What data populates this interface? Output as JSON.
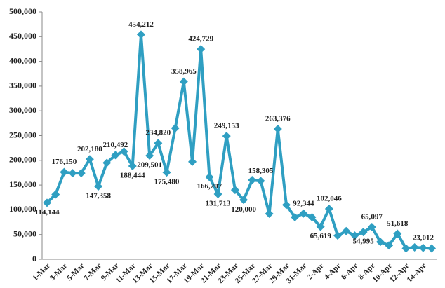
{
  "chart_data": {
    "type": "line",
    "categories": [
      "1-Mar",
      null,
      "3-Mar",
      null,
      "5-Mar",
      null,
      "7-Mar",
      null,
      "9-Mar",
      null,
      "11-Mar",
      null,
      "13-Mar",
      null,
      "15-Mar",
      null,
      "17-Mar",
      null,
      "19-Mar",
      null,
      "21-Mar",
      null,
      "23-Mar",
      null,
      "25-Mar",
      null,
      "27-Mar",
      null,
      "29-Mar",
      null,
      "31-Mar",
      null,
      "2-Apr",
      null,
      "4-Apr",
      null,
      "6-Apr",
      null,
      "8-Apr",
      null,
      "10-Apr",
      null,
      "12-Apr",
      null,
      "14-Apr",
      null
    ],
    "series": [
      {
        "name": null,
        "color": "#2f9fc2",
        "values": [
          114144,
          131000,
          176150,
          174000,
          174000,
          202180,
          147358,
          195000,
          210492,
          218000,
          188444,
          454212,
          209501,
          234820,
          175480,
          265000,
          358965,
          197000,
          424729,
          166207,
          131713,
          249153,
          140000,
          120000,
          160000,
          158305,
          92000,
          263376,
          110000,
          85000,
          92344,
          85000,
          65619,
          102046,
          48000,
          57000,
          48000,
          54995,
          65097,
          35000,
          28000,
          51618,
          22000,
          24000,
          23012,
          22000
        ],
        "value_labels": [
          "114,144",
          null,
          "176,150",
          null,
          null,
          "202,180",
          "147,358",
          null,
          "210,492",
          null,
          "188,444",
          "454,212",
          "209,501",
          "234,820",
          "175,480",
          null,
          "358,965",
          null,
          "424,729",
          "166,207",
          "131,713",
          "249,153",
          null,
          "120,000",
          null,
          "158,305",
          null,
          "263,376",
          null,
          null,
          "92,344",
          null,
          "65,619",
          "102,046",
          null,
          null,
          null,
          "54,995",
          "65,097",
          null,
          null,
          "51,618",
          null,
          null,
          "23,012",
          null
        ]
      }
    ],
    "ylim": [
      0,
      500000
    ],
    "yticks": [
      0,
      {
        "value": 50000,
        "label": "50,000"
      },
      {
        "value": 100000,
        "label": "100,000"
      },
      {
        "value": 150000,
        "label": "150,000"
      },
      {
        "value": 200000,
        "label": "200,000"
      },
      {
        "value": 250000,
        "label": "250,000"
      },
      {
        "value": 300000,
        "label": "300,000"
      },
      {
        "value": 350000,
        "label": "350,000"
      },
      {
        "value": 400000,
        "label": "400,000"
      },
      {
        "value": 450000,
        "label": "450,000"
      },
      {
        "value": 500000,
        "label": "500,000"
      }
    ]
  }
}
